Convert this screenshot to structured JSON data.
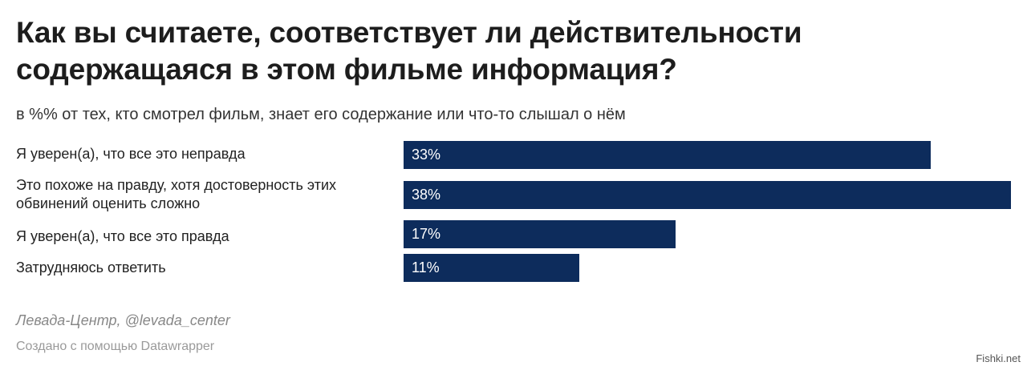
{
  "title": "Как вы считаете, соответствует ли действительности содержащаяся в этом фильме информация?",
  "subtitle": "в %% от тех, кто смотрел фильм, знает его содержание или что-то слышал о нём",
  "source": "Левада-Центр, @levada_center",
  "credit": "Создано с помощью Datawrapper",
  "watermark": "Fishki.net",
  "colors": {
    "bar": "#0d2c5c",
    "text": "#222222"
  },
  "chart_data": {
    "type": "bar",
    "orientation": "horizontal",
    "categories": [
      "Я уверен(а), что все это неправда",
      "Это похоже на правду, хотя достоверность этих обвинений оценить сложно",
      "Я уверен(а), что все это правда",
      "Затрудняюсь ответить"
    ],
    "values": [
      33,
      38,
      17,
      11
    ],
    "value_labels": [
      "33%",
      "38%",
      "17%",
      "11%"
    ],
    "title": "Как вы считаете, соответствует ли действительности содержащаяся в этом фильме информация?",
    "subtitle": "в %% от тех, кто смотрел фильм, знает его содержание или что-то слышал о нём",
    "xlim": [
      0,
      38
    ],
    "grid": false,
    "legend": "none"
  }
}
